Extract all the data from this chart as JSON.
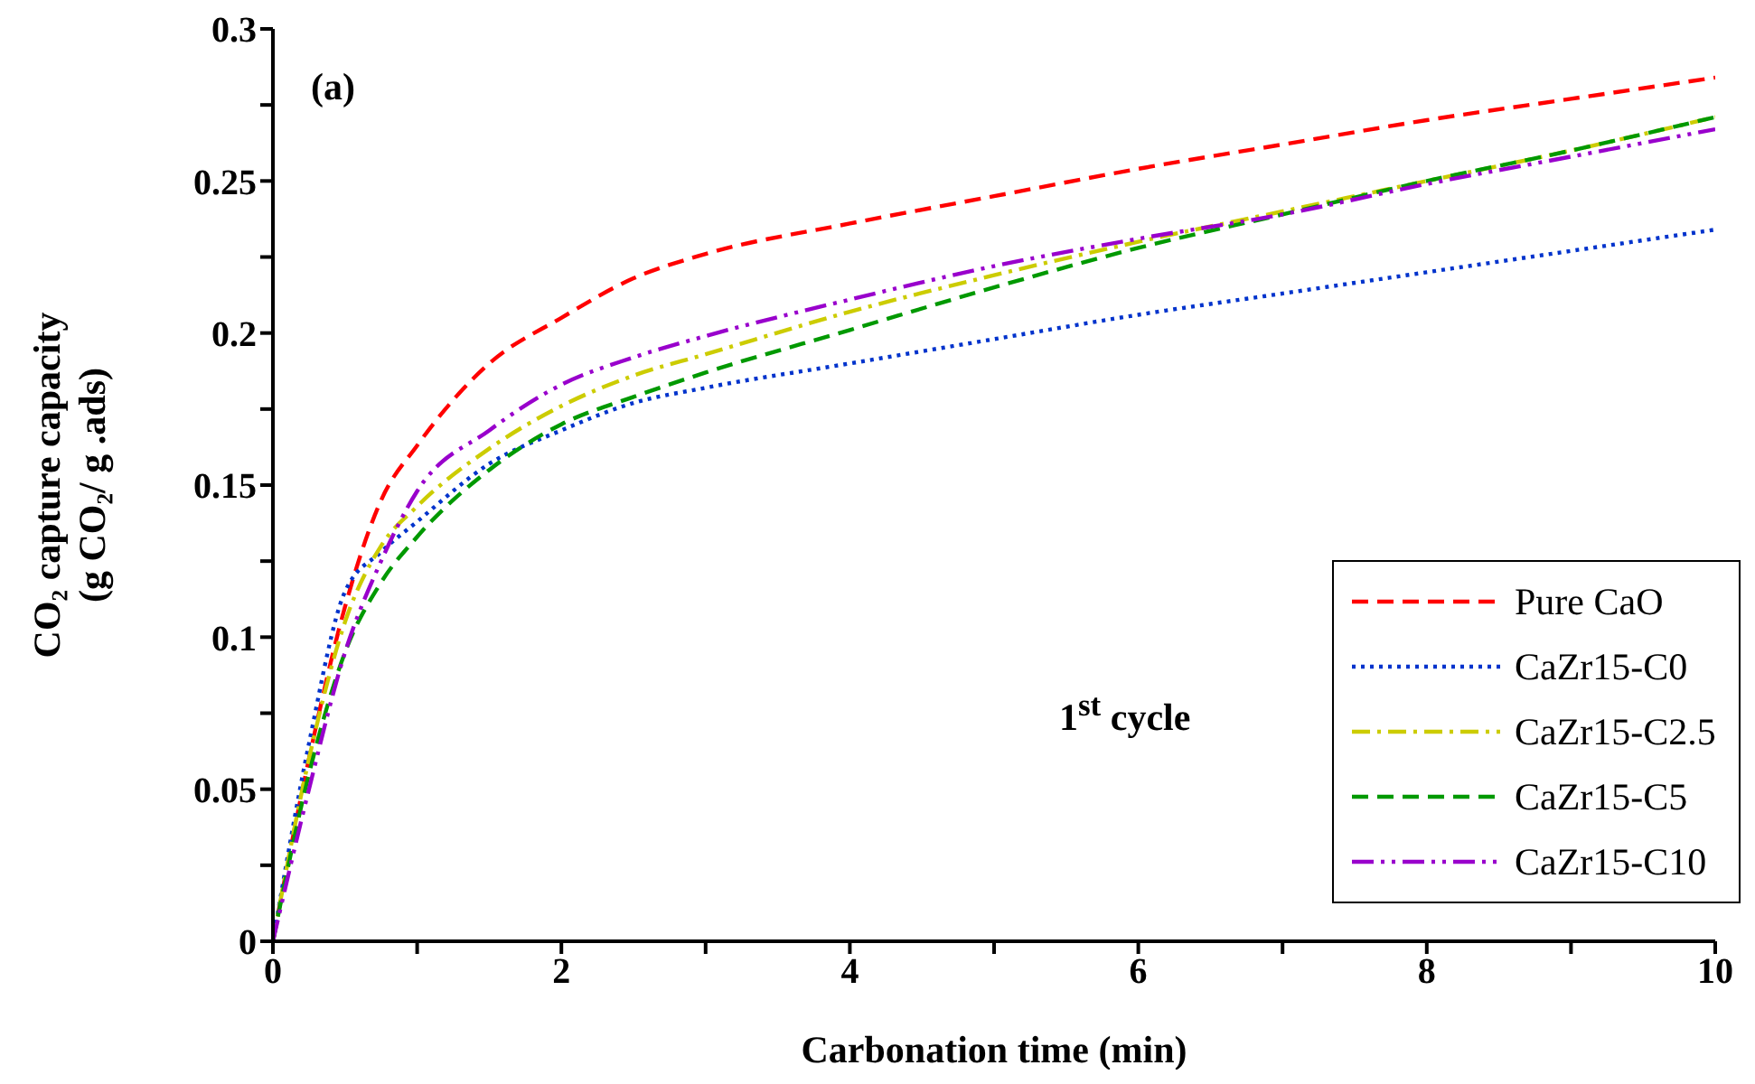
{
  "chart_data": {
    "type": "line",
    "xlabel": "Carbonation time (min)",
    "ylabel": "CO₂ capture capacity\n(g CO₂/ g .ads)",
    "annotations": [
      "(a)",
      "1$^{st}$ cycle"
    ],
    "x": [
      0,
      0.25,
      0.5,
      0.75,
      1,
      1.5,
      2,
      2.5,
      3,
      4,
      5,
      6,
      7,
      8,
      9,
      10
    ],
    "series": [
      {
        "name": "Pure CaO",
        "color": "#ff0000",
        "line_style": "dashed",
        "values": [
          0,
          0.06,
          0.11,
          0.145,
          0.163,
          0.19,
          0.205,
          0.218,
          0.226,
          0.236,
          0.245,
          0.254,
          0.262,
          0.27,
          0.277,
          0.284
        ]
      },
      {
        "name": "CaZr15-C0",
        "color": "#0033cc",
        "line_style": "dotted",
        "values": [
          0,
          0.065,
          0.115,
          0.128,
          0.138,
          0.157,
          0.168,
          0.177,
          0.182,
          0.19,
          0.198,
          0.206,
          0.213,
          0.22,
          0.227,
          0.234
        ]
      },
      {
        "name": "CaZr15-C2.5",
        "color": "#cccc00",
        "line_style": "dashdot",
        "values": [
          0,
          0.06,
          0.105,
          0.13,
          0.143,
          0.162,
          0.176,
          0.186,
          0.193,
          0.207,
          0.219,
          0.23,
          0.24,
          0.25,
          0.26,
          0.271
        ]
      },
      {
        "name": "CaZr15-C5",
        "color": "#009900",
        "line_style": "dashed",
        "values": [
          0,
          0.055,
          0.095,
          0.118,
          0.133,
          0.155,
          0.17,
          0.179,
          0.187,
          0.201,
          0.215,
          0.228,
          0.239,
          0.25,
          0.26,
          0.271
        ]
      },
      {
        "name": "CaZr15-C10",
        "color": "#9900cc",
        "line_style": "dashdotdot",
        "values": [
          0,
          0.05,
          0.095,
          0.125,
          0.148,
          0.168,
          0.183,
          0.192,
          0.199,
          0.211,
          0.222,
          0.231,
          0.239,
          0.249,
          0.258,
          0.267
        ]
      }
    ],
    "xlim": [
      0,
      10
    ],
    "xticks": [
      0,
      {
        "value": 1,
        "label": null
      },
      2,
      {
        "value": 3,
        "label": null
      },
      4,
      {
        "value": 5,
        "label": null
      },
      6,
      {
        "value": 7,
        "label": null
      },
      8,
      {
        "value": 9,
        "label": null
      },
      10
    ],
    "ylim": [
      0,
      0.3
    ],
    "yticks": [
      0,
      {
        "value": 0.025,
        "label": null
      },
      0.05,
      {
        "value": 0.075,
        "label": null
      },
      0.1,
      {
        "value": 0.125,
        "label": null
      },
      0.15,
      {
        "value": 0.175,
        "label": null
      },
      0.2,
      {
        "value": 0.225,
        "label": null
      },
      0.25,
      {
        "value": 0.275,
        "label": null
      },
      0.3
    ],
    "grid": false,
    "legend": "bottom right"
  }
}
